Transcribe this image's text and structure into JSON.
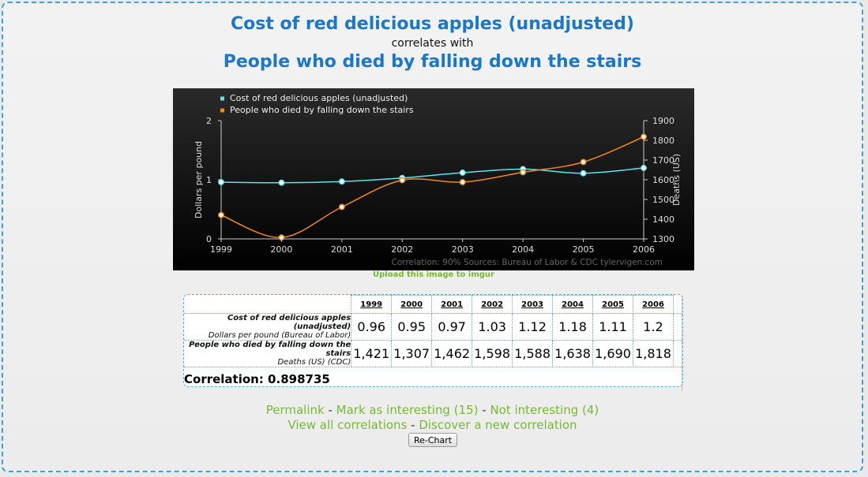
{
  "header": {
    "title1": "Cost of red delicious apples (unadjusted)",
    "subtitle": "correlates with",
    "title2": "People who died by falling down the stairs"
  },
  "chart_data": {
    "type": "line",
    "x": [
      1999,
      2000,
      2001,
      2002,
      2003,
      2004,
      2005,
      2006
    ],
    "series": [
      {
        "name": "Cost of red delicious apples (unadjusted)",
        "axis": "left",
        "color": "#5ee4ee",
        "values": [
          0.96,
          0.95,
          0.97,
          1.03,
          1.12,
          1.18,
          1.11,
          1.2
        ]
      },
      {
        "name": "People who died by falling down the stairs",
        "axis": "right",
        "color": "#f08a1f",
        "values": [
          1421,
          1307,
          1462,
          1598,
          1588,
          1638,
          1690,
          1818
        ]
      }
    ],
    "ylabel_left": "Dollars per pound",
    "ylabel_right": "Deaths (US)",
    "ylim_left": [
      0,
      2
    ],
    "ylim_right": [
      1300,
      1900
    ],
    "yticks_left": [
      "0",
      "1",
      "2"
    ],
    "yticks_right": [
      "1300",
      "1400",
      "1500",
      "1600",
      "1700",
      "1800",
      "1900"
    ],
    "footer": "Correlation: 90%    Sources: Bureau of Labor & CDC    tylervigen.com",
    "legend_position": "top-left"
  },
  "upload_link": "Upload this image to imgur",
  "table": {
    "years": [
      "1999",
      "2000",
      "2001",
      "2002",
      "2003",
      "2004",
      "2005",
      "2006"
    ],
    "rows": [
      {
        "label": "Cost of red delicious apples (unadjusted)",
        "sublabel": "Dollars per pound (Bureau of Labor)",
        "values": [
          "0.96",
          "0.95",
          "0.97",
          "1.03",
          "1.12",
          "1.18",
          "1.11",
          "1.2"
        ]
      },
      {
        "label": "People who died by falling down the stairs",
        "sublabel": "Deaths (US) (CDC)",
        "values": [
          "1,421",
          "1,307",
          "1,462",
          "1,598",
          "1,588",
          "1,638",
          "1,690",
          "1,818"
        ]
      }
    ],
    "correlation": "Correlation: 0.898735"
  },
  "links": {
    "permalink": "Permalink",
    "mark": "Mark as interesting (15)",
    "not": "Not interesting (4)",
    "view_all": "View all correlations",
    "discover": "Discover a new correlation",
    "sep": " - "
  },
  "recharts_button": "Re-Chart"
}
